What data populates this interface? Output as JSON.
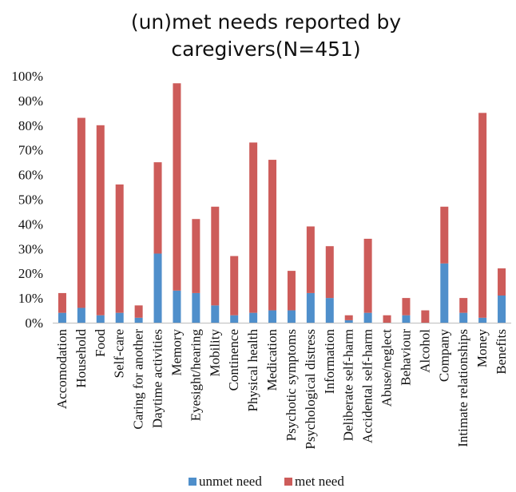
{
  "chart_data": {
    "type": "bar",
    "stacked": true,
    "title_lines": [
      "(un)met needs reported by",
      "caregivers(N=451)"
    ],
    "categories": [
      "Accomodation",
      "Household",
      "Food",
      "Self-care",
      "Caring for another",
      "Daytime activities",
      "Memory",
      "Eyesight/hearing",
      "Mobility",
      "Continence",
      "Physical health",
      "Medication",
      "Psychotic symptoms",
      "Psychological distress",
      "Information",
      "Deliberate self-harm",
      "Accidental self-harm",
      "Abuse/neglect",
      "Behaviour",
      "Alcohol",
      "Company",
      "Intimate relationships",
      "Money",
      "Benefits"
    ],
    "series": [
      {
        "name": "unmet need",
        "color": "#4f8fcb",
        "values": [
          4,
          6,
          3,
          4,
          2,
          28,
          13,
          12,
          7,
          3,
          4,
          5,
          5,
          12,
          10,
          1,
          4,
          0,
          3,
          0,
          24,
          4,
          2,
          11
        ]
      },
      {
        "name": "met need",
        "color": "#cd5c5a",
        "values": [
          8,
          77,
          77,
          52,
          5,
          37,
          84,
          30,
          40,
          24,
          69,
          61,
          16,
          27,
          21,
          2,
          30,
          3,
          7,
          5,
          23,
          6,
          83,
          11
        ]
      }
    ],
    "yticks": [
      "0%",
      "10%",
      "20%",
      "30%",
      "40%",
      "50%",
      "60%",
      "70%",
      "80%",
      "90%",
      "100%"
    ],
    "ylim": [
      0,
      100
    ],
    "grid": false,
    "legend_position": "bottom"
  }
}
